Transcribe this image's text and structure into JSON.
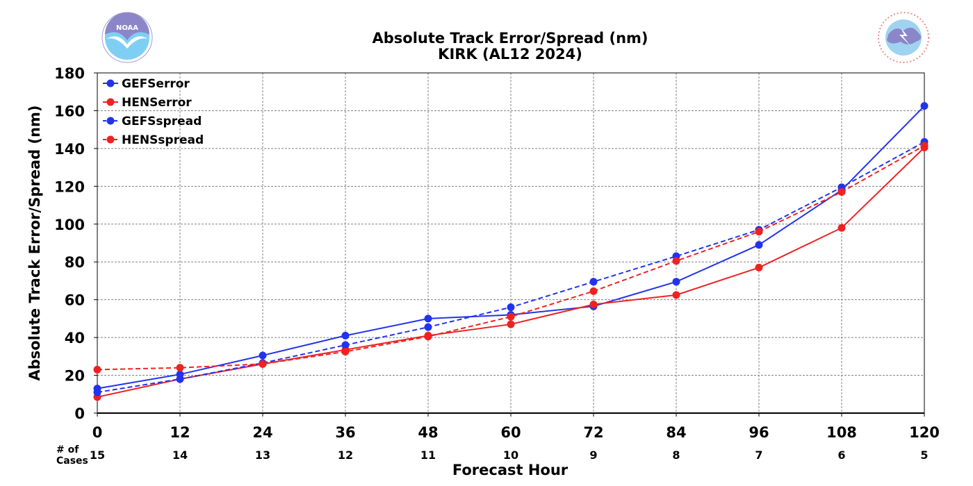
{
  "chart_data": {
    "type": "line",
    "title": "Absolute Track Error/Spread (nm)",
    "subtitle": "KIRK (AL12 2024)",
    "xlabel": "Forecast Hour",
    "ylabel": "Absolute Track Error/Spread (nm)",
    "x": [
      0,
      12,
      24,
      36,
      48,
      60,
      72,
      84,
      96,
      108,
      120
    ],
    "xlim": [
      0,
      120
    ],
    "ylim": [
      0,
      180
    ],
    "yticks": [
      0,
      20,
      40,
      60,
      80,
      100,
      120,
      140,
      160,
      180
    ],
    "grid": true,
    "legend_position": "top-left",
    "cases_label": "# of\nCases",
    "cases": [
      15,
      14,
      13,
      12,
      11,
      10,
      9,
      8,
      7,
      6,
      5
    ],
    "series": [
      {
        "name": "GEFSerror",
        "color": "#2233ee",
        "dash": "solid",
        "values": [
          13,
          20.5,
          30.5,
          41,
          50,
          52,
          56.5,
          69.5,
          89,
          118,
          162.5
        ]
      },
      {
        "name": "HENSerror",
        "color": "#ee2222",
        "dash": "solid",
        "values": [
          8.5,
          18,
          26,
          33.5,
          41,
          47,
          57.5,
          62.5,
          77,
          98,
          140.5
        ]
      },
      {
        "name": "GEFSspread",
        "color": "#2233ee",
        "dash": "dashed",
        "values": [
          11,
          18,
          26.5,
          36,
          45.5,
          56,
          69.5,
          83,
          97,
          119.5,
          143.5
        ]
      },
      {
        "name": "HENSspread",
        "color": "#ee2222",
        "dash": "dashed",
        "values": [
          23,
          24,
          26,
          32.5,
          40.5,
          51,
          64.5,
          80.5,
          96,
          117,
          141.5
        ]
      }
    ]
  },
  "logos": {
    "left": {
      "icon": "noaa-logo",
      "text": "NOAA"
    },
    "right": {
      "icon": "nws-logo",
      "text": "NATIONAL WEATHER SERVICE"
    }
  }
}
